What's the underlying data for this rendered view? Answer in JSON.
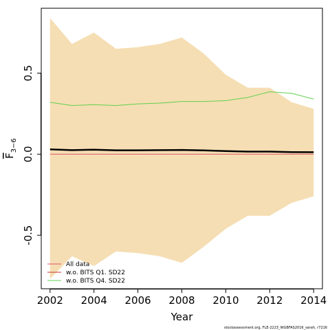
{
  "chart_data": {
    "type": "area",
    "xlabel": "Year",
    "ylabel_main": "F",
    "ylabel_sub": "3−6",
    "xlim": [
      2001.6,
      2014.4
    ],
    "ylim": [
      -0.83,
      0.9
    ],
    "x_ticks": [
      2002,
      2004,
      2006,
      2008,
      2010,
      2012,
      2014
    ],
    "x_tick_labels": [
      "2002",
      "2004",
      "2006",
      "2008",
      "2010",
      "2012",
      "2014"
    ],
    "y_ticks": [
      -0.5,
      0.0,
      0.5
    ],
    "y_tick_labels": [
      "-0.5",
      "0.0",
      "0.5"
    ],
    "x": [
      2002,
      2003,
      2004,
      2005,
      2006,
      2007,
      2008,
      2009,
      2010,
      2011,
      2012,
      2013,
      2014
    ],
    "band": {
      "upper": [
        0.84,
        0.68,
        0.75,
        0.65,
        0.66,
        0.68,
        0.72,
        0.62,
        0.49,
        0.41,
        0.41,
        0.32,
        0.28
      ],
      "lower": [
        -0.77,
        -0.63,
        -0.69,
        -0.6,
        -0.61,
        -0.63,
        -0.67,
        -0.57,
        -0.46,
        -0.38,
        -0.38,
        -0.3,
        -0.26
      ],
      "color": "#f5deb3"
    },
    "series": [
      {
        "name": "All data",
        "color": "#000000",
        "values": [
          0.03,
          0.025,
          0.028,
          0.024,
          0.024,
          0.025,
          0.026,
          0.023,
          0.019,
          0.016,
          0.016,
          0.013,
          0.012
        ]
      },
      {
        "name": "w.o. BITS Q1. SD22",
        "color": "#df536b",
        "values": [
          0.0,
          0.0,
          0.0,
          0.0,
          0.0,
          0.0,
          0.0,
          0.0,
          0.0,
          0.0,
          0.0,
          0.0,
          0.0
        ]
      },
      {
        "name": "w.o. BITS Q4. SD22",
        "color": "#61d04f",
        "values": [
          0.32,
          0.3,
          0.305,
          0.3,
          0.31,
          0.315,
          0.325,
          0.325,
          0.33,
          0.35,
          0.385,
          0.375,
          0.34
        ]
      }
    ],
    "legend": {
      "position": "bottom-left",
      "entries": [
        {
          "label": "All data",
          "color": "#df536b"
        },
        {
          "label": "w.o. BITS Q1. SD22",
          "color": "#c0392b"
        },
        {
          "label": "w.o. BITS Q4. SD22",
          "color": "#61d04f"
        }
      ]
    },
    "footer": "stockassessment.org, FLE-2223_WGBFAS2016_sarah, r7216"
  }
}
